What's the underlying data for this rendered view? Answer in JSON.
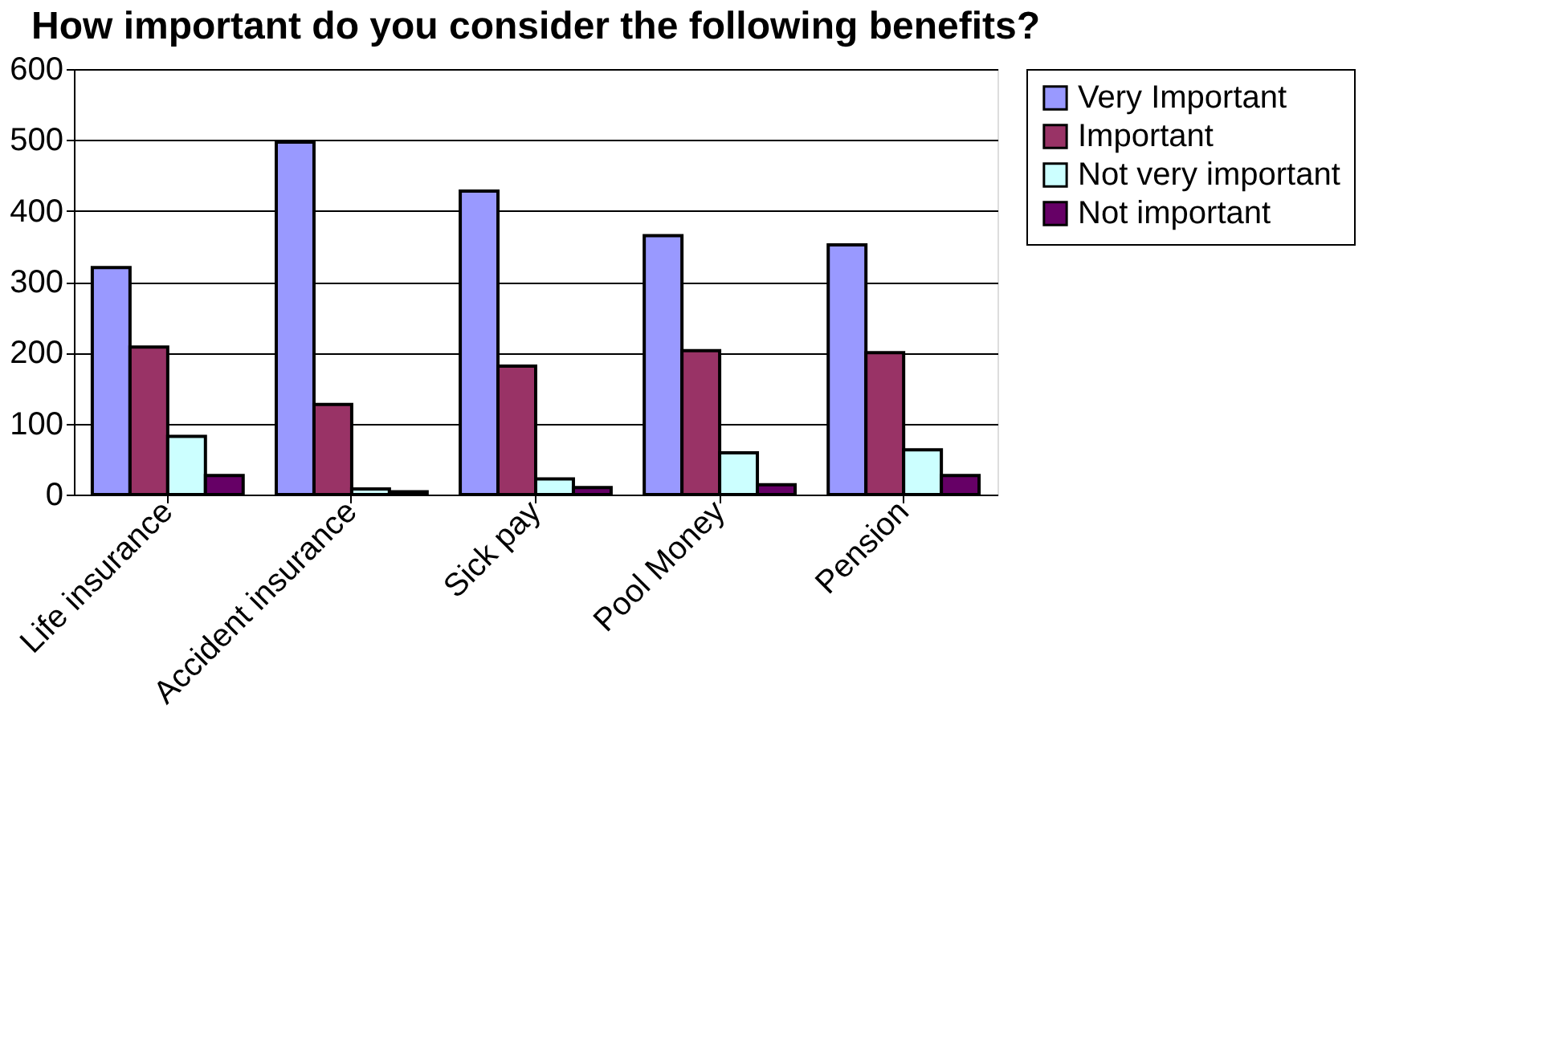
{
  "chart_data": {
    "type": "bar",
    "title": "How important do you consider the following benefits?",
    "categories": [
      "Life insurance",
      "Accident insurance",
      "Sick pay",
      "Pool Money",
      "Pension"
    ],
    "series": [
      {
        "name": "Very Important",
        "color": "#9999ff",
        "values": [
          320,
          497,
          428,
          365,
          352
        ]
      },
      {
        "name": "Important",
        "color": "#993366",
        "values": [
          208,
          127,
          181,
          203,
          200
        ]
      },
      {
        "name": "Not very important",
        "color": "#ccffff",
        "values": [
          82,
          8,
          22,
          59,
          63
        ]
      },
      {
        "name": "Not important",
        "color": "#660066",
        "values": [
          27,
          4,
          10,
          14,
          27
        ]
      }
    ],
    "ylim": [
      0,
      600
    ],
    "yticks": [
      0,
      100,
      200,
      300,
      400,
      500,
      600
    ],
    "grid": "y",
    "legend": "right"
  }
}
